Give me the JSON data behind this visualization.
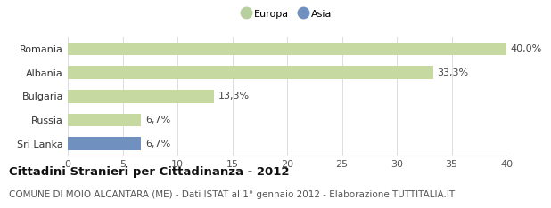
{
  "categories": [
    "Romania",
    "Albania",
    "Bulgaria",
    "Russia",
    "Sri Lanka"
  ],
  "values": [
    40.0,
    33.3,
    13.3,
    6.7,
    6.7
  ],
  "labels": [
    "40,0%",
    "33,3%",
    "13,3%",
    "6,7%",
    "6,7%"
  ],
  "colors": [
    "#c5d9a0",
    "#c5d9a0",
    "#c5d9a0",
    "#c5d9a0",
    "#7090c0"
  ],
  "bar_height": 0.55,
  "xlim": [
    0,
    40
  ],
  "xticks": [
    0,
    5,
    10,
    15,
    20,
    25,
    30,
    35,
    40
  ],
  "legend_europa_color": "#b8cfa0",
  "legend_asia_color": "#7090c0",
  "legend_europa_label": "Europa",
  "legend_asia_label": "Asia",
  "title": "Cittadini Stranieri per Cittadinanza - 2012",
  "subtitle": "COMUNE DI MOIO ALCANTARA (ME) - Dati ISTAT al 1° gennaio 2012 - Elaborazione TUTTITALIA.IT",
  "title_fontsize": 9.5,
  "subtitle_fontsize": 7.5,
  "bg_color": "#ffffff",
  "grid_color": "#dddddd",
  "label_fontsize": 8,
  "tick_fontsize": 8,
  "ylabel_fontsize": 8
}
